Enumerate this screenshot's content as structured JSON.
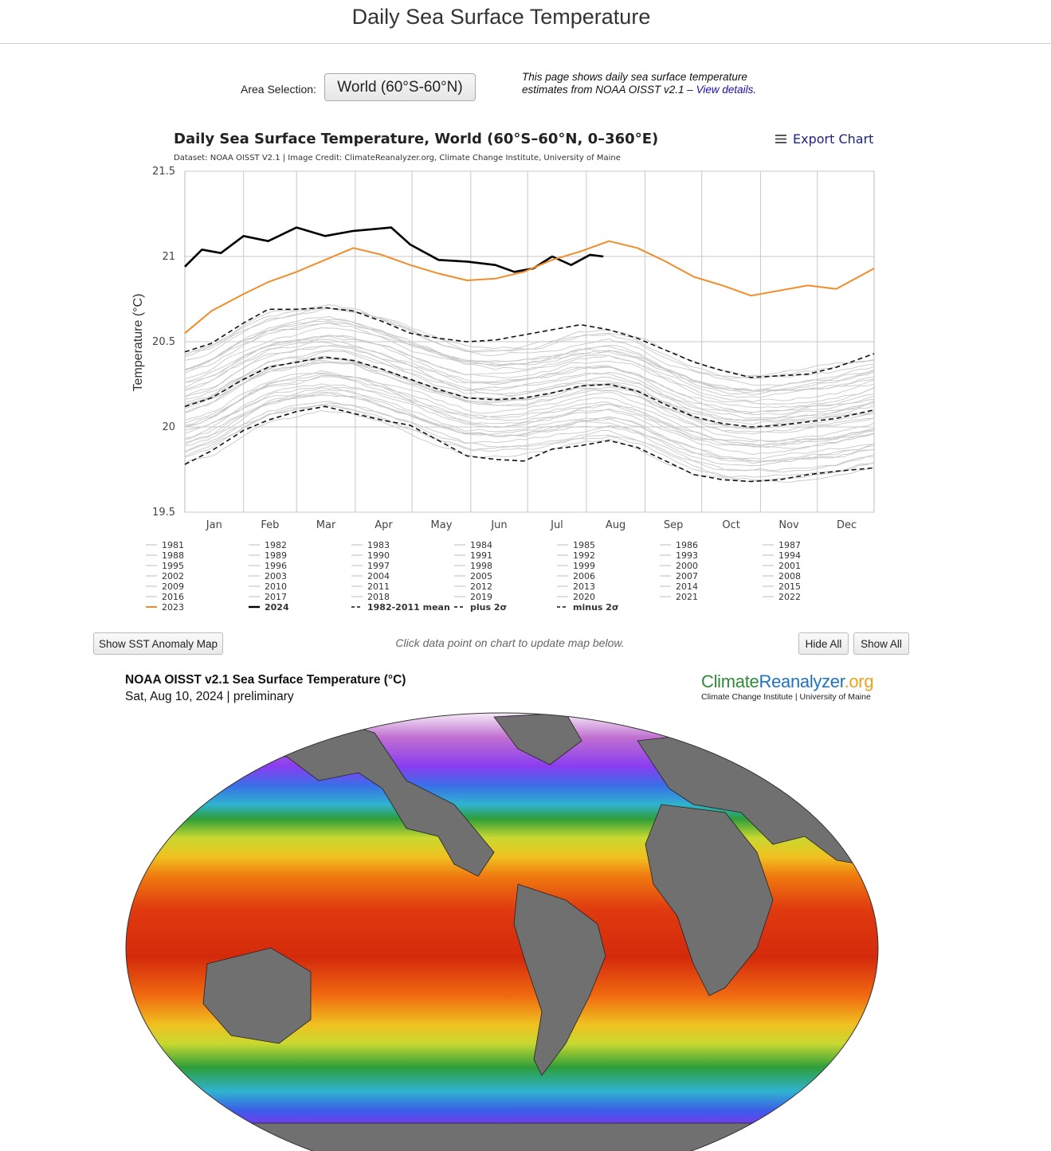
{
  "page": {
    "title": "Daily Sea Surface Temperature"
  },
  "area": {
    "label": "Area Selection:",
    "selected": "World (60°S-60°N)"
  },
  "intro": {
    "text": "This page shows daily sea surface temperature estimates from NOAA OISST v2.1 – ",
    "link": "View details",
    "end": "."
  },
  "export": {
    "label": "Export Chart"
  },
  "controls": {
    "anomaly_button": "Show SST Anomaly Map",
    "hint": "Click data point on chart to update map below.",
    "hide_all": "Hide All",
    "show_all": "Show All"
  },
  "map": {
    "title": "NOAA OISST v2.1 Sea Surface Temperature (°C)",
    "date": "Sat, Aug 10, 2024 | preliminary",
    "logo": {
      "part1": "Climate",
      "part2": "Reanalyzer",
      "part3": ".org"
    },
    "logo_sub": "Climate Change Institute | University of Maine"
  },
  "colors": {
    "y2023": "#f28c28",
    "y2024": "#000000",
    "history": "#c8c8c8",
    "stat": "#111111"
  },
  "chart_data": {
    "type": "line",
    "title": "Daily Sea Surface Temperature, World (60°S–60°N, 0–360°E)",
    "subtitle": "Dataset: NOAA OISST V2.1 | Image Credit: ClimateReanalyzer.org, Climate Change Institute, University of Maine",
    "ylabel": "Temperature (°C)",
    "ylim": [
      19.5,
      21.5
    ],
    "yticks": [
      "19.5",
      "20",
      "20.5",
      "21",
      "21.5"
    ],
    "months": [
      "Jan",
      "Feb",
      "Mar",
      "Apr",
      "May",
      "Jun",
      "Jul",
      "Aug",
      "Sep",
      "Oct",
      "Nov",
      "Dec"
    ],
    "grid": "on",
    "legend_position": "bottom",
    "legend": [
      "1981",
      "1982",
      "1983",
      "1984",
      "1985",
      "1986",
      "1987",
      "1988",
      "1989",
      "1990",
      "1991",
      "1992",
      "1993",
      "1994",
      "1995",
      "1996",
      "1997",
      "1998",
      "1999",
      "2000",
      "2001",
      "2002",
      "2003",
      "2004",
      "2005",
      "2006",
      "2007",
      "2008",
      "2009",
      "2010",
      "2011",
      "2012",
      "2013",
      "2014",
      "2015",
      "2016",
      "2017",
      "2018",
      "2019",
      "2020",
      "2021",
      "2022",
      "2023",
      "2024",
      "1982-2011 mean",
      "plus 2σ",
      "minus 2σ"
    ],
    "series": [
      {
        "name": "2024",
        "days": [
          1,
          10,
          20,
          32,
          45,
          60,
          75,
          90,
          100,
          110,
          120,
          135,
          150,
          165,
          175,
          185,
          195,
          205,
          215,
          222
        ],
        "values": [
          20.94,
          21.04,
          21.02,
          21.12,
          21.09,
          21.17,
          21.12,
          21.15,
          21.16,
          21.17,
          21.07,
          20.98,
          20.97,
          20.95,
          20.91,
          20.93,
          21.0,
          20.95,
          21.01,
          21.0
        ]
      },
      {
        "name": "2023",
        "days": [
          1,
          15,
          32,
          45,
          60,
          75,
          90,
          105,
          120,
          135,
          150,
          165,
          180,
          195,
          210,
          225,
          240,
          255,
          270,
          285,
          300,
          315,
          330,
          345,
          365
        ],
        "values": [
          20.55,
          20.68,
          20.78,
          20.85,
          20.91,
          20.98,
          21.05,
          21.01,
          20.95,
          20.9,
          20.86,
          20.87,
          20.91,
          20.98,
          21.03,
          21.09,
          21.05,
          20.97,
          20.88,
          20.83,
          20.77,
          20.8,
          20.83,
          20.81,
          20.93
        ]
      },
      {
        "name": "1982-2011 mean",
        "days": [
          1,
          15,
          32,
          45,
          60,
          75,
          90,
          105,
          120,
          135,
          150,
          165,
          180,
          195,
          210,
          225,
          240,
          255,
          270,
          285,
          300,
          315,
          330,
          345,
          365
        ],
        "values": [
          20.12,
          20.17,
          20.28,
          20.35,
          20.38,
          20.41,
          20.39,
          20.34,
          20.28,
          20.22,
          20.17,
          20.16,
          20.17,
          20.2,
          20.24,
          20.25,
          20.21,
          20.13,
          20.06,
          20.02,
          20.0,
          20.01,
          20.03,
          20.05,
          20.1
        ]
      },
      {
        "name": "plus 2σ",
        "days": [
          1,
          15,
          32,
          45,
          60,
          75,
          90,
          105,
          120,
          135,
          150,
          165,
          180,
          195,
          210,
          225,
          240,
          255,
          270,
          285,
          300,
          315,
          330,
          345,
          365
        ],
        "values": [
          20.44,
          20.49,
          20.61,
          20.69,
          20.69,
          20.7,
          20.68,
          20.62,
          20.55,
          20.52,
          20.5,
          20.51,
          20.54,
          20.57,
          20.6,
          20.57,
          20.52,
          20.45,
          20.38,
          20.33,
          20.29,
          20.3,
          20.31,
          20.35,
          20.43
        ]
      },
      {
        "name": "minus 2σ",
        "days": [
          1,
          15,
          32,
          45,
          60,
          75,
          90,
          105,
          120,
          135,
          150,
          165,
          180,
          195,
          210,
          225,
          240,
          255,
          270,
          285,
          300,
          315,
          330,
          345,
          365
        ],
        "values": [
          19.78,
          19.86,
          19.98,
          20.04,
          20.09,
          20.12,
          20.08,
          20.04,
          20.01,
          19.92,
          19.83,
          19.81,
          19.8,
          19.87,
          19.89,
          19.92,
          19.88,
          19.8,
          19.72,
          19.69,
          19.68,
          19.69,
          19.72,
          19.74,
          19.76
        ]
      }
    ]
  }
}
